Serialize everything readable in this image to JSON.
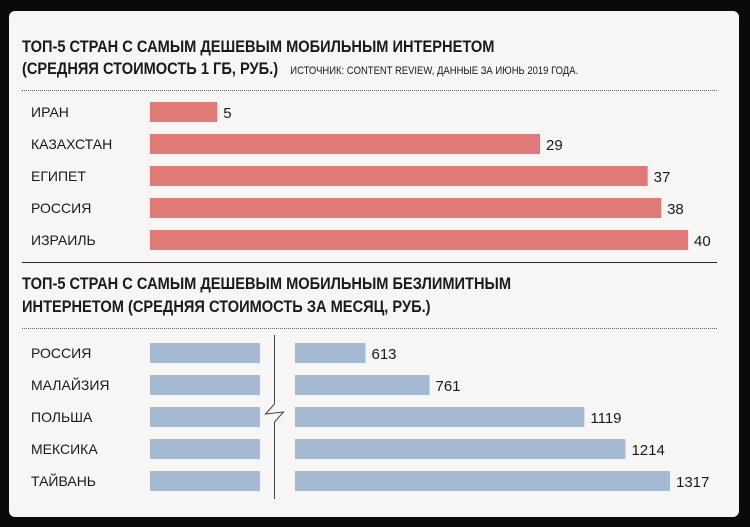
{
  "charts": [
    {
      "title_line1": "ТОП-5 СТРАН С САМЫМ ДЕШЕВЫМ МОБИЛЬНЫМ ИНТЕРНЕТОМ",
      "title_line2": "(СРЕДНЯЯ СТОИМОСТЬ 1 ГБ, РУБ.)",
      "source": "ИСТОЧНИК: CONTENT REVIEW, ДАННЫЕ ЗА ИЮНЬ 2019 ГОДА."
    },
    {
      "title_line1": "ТОП-5 СТРАН С САМЫМ ДЕШЕВЫМ МОБИЛЬНЫМ БЕЗЛИМИТНЫМ",
      "title_line2": "ИНТЕРНЕТОМ (СРЕДНЯЯ СТОИМОСТЬ ЗА МЕСЯЦ, РУБ.)"
    }
  ],
  "chart_data": [
    {
      "type": "bar",
      "orientation": "horizontal",
      "categories": [
        "ИРАН",
        "КАЗАХСТАН",
        "ЕГИПЕТ",
        "РОССИЯ",
        "ИЗРАИЛЬ"
      ],
      "values": [
        5,
        29,
        37,
        38,
        40
      ],
      "value_labels": [
        "5",
        "29",
        "37",
        "38",
        "40"
      ],
      "color": "#e07a78",
      "xlim": [
        0,
        40
      ]
    },
    {
      "type": "bar",
      "orientation": "horizontal",
      "axis_break": true,
      "categories": [
        "РОССИЯ",
        "МАЛАЙЗИЯ",
        "ПОЛЬША",
        "МЕКСИКА",
        "ТАЙВАНЬ"
      ],
      "values": [
        613,
        761,
        1119,
        1214,
        1317
      ],
      "value_labels": [
        "613",
        "761",
        "1119",
        "1214",
        "1317"
      ],
      "color": "#a4bad3",
      "xlim": [
        450,
        1317
      ]
    }
  ]
}
